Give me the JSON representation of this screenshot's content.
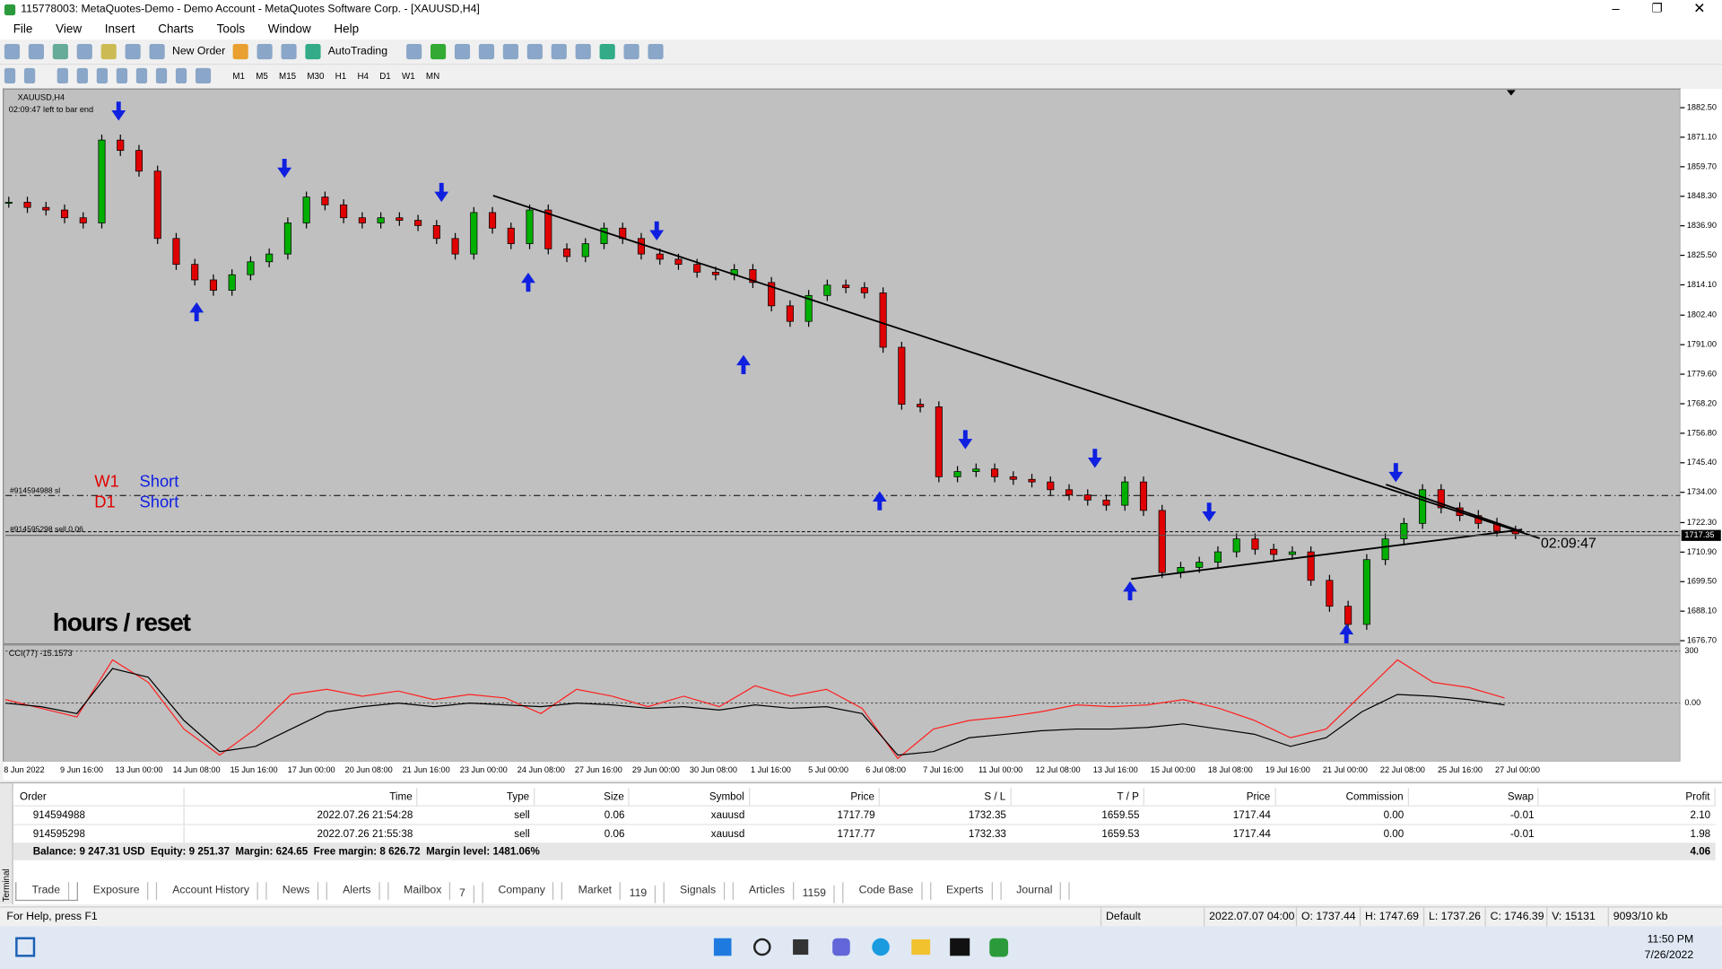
{
  "window": {
    "title": "115778003: MetaQuotes-Demo - Demo Account - MetaQuotes Software Corp. - [XAUUSD,H4]"
  },
  "menu": [
    "File",
    "View",
    "Insert",
    "Charts",
    "Tools",
    "Window",
    "Help"
  ],
  "toolbar": {
    "new_order": "New Order",
    "autotrading": "AutoTrading",
    "timeframes": [
      "M1",
      "M5",
      "M15",
      "M30",
      "H1",
      "H4",
      "D1",
      "W1",
      "MN"
    ]
  },
  "chart_data": [
    {
      "type": "candlestick",
      "symbol_label": "XAUUSD,H4",
      "timer_label": "02:09:47 left to bar end",
      "values": [
        1846,
        1844,
        1843,
        1840,
        1838,
        1870,
        1866,
        1858,
        1832,
        1822,
        1816,
        1812,
        1818,
        1823,
        1826,
        1838,
        1848,
        1845,
        1840,
        1838,
        1840,
        1839,
        1837,
        1832,
        1826,
        1842,
        1836,
        1830,
        1843,
        1828,
        1825,
        1830,
        1836,
        1832,
        1826,
        1824,
        1822,
        1819,
        1818,
        1820,
        1815,
        1806,
        1800,
        1810,
        1814,
        1813,
        1811,
        1790,
        1768,
        1767,
        1740,
        1742,
        1743,
        1740,
        1739,
        1738,
        1735,
        1733,
        1731,
        1729,
        1738,
        1727,
        1703,
        1705,
        1707,
        1711,
        1716,
        1712,
        1710,
        1711,
        1700,
        1690,
        1683,
        1708,
        1716,
        1722,
        1735,
        1728,
        1725,
        1722,
        1719,
        1718
      ],
      "up_color": "#00b000",
      "down_color": "#e00000",
      "ylim": [
        1675.5,
        1889.3
      ],
      "yticks": [
        {
          "value": 1882.5,
          "label": "1882.50"
        },
        {
          "value": 1871.1,
          "label": "1871.10"
        },
        {
          "value": 1859.7,
          "label": "1859.70"
        },
        {
          "value": 1848.3,
          "label": "1848.30"
        },
        {
          "value": 1836.9,
          "label": "1836.90"
        },
        {
          "value": 1825.5,
          "label": "1825.50"
        },
        {
          "value": 1814.1,
          "label": "1814.10"
        },
        {
          "value": 1802.4,
          "label": "1802.40"
        },
        {
          "value": 1791,
          "label": "1791.00"
        },
        {
          "value": 1779.6,
          "label": "1779.60"
        },
        {
          "value": 1768.2,
          "label": "1768.20"
        },
        {
          "value": 1756.8,
          "label": "1756.80"
        },
        {
          "value": 1745.4,
          "label": "1745.40"
        },
        {
          "value": 1734,
          "label": "1734.00"
        },
        {
          "value": 1722.3,
          "label": "1722.30"
        },
        {
          "value": 1710.9,
          "label": "1710.90"
        },
        {
          "value": 1699.5,
          "label": "1699.50"
        },
        {
          "value": 1688.1,
          "label": "1688.10"
        },
        {
          "value": 1676.7,
          "label": "1676.70"
        }
      ],
      "bid": 1717.35,
      "x_axis_labels": [
        "8 Jun 2022",
        "9 Jun 16:00",
        "13 Jun 00:00",
        "14 Jun 08:00",
        "15 Jun 16:00",
        "17 Jun 00:00",
        "20 Jun 08:00",
        "21 Jun 16:00",
        "23 Jun 00:00",
        "24 Jun 08:00",
        "27 Jun 16:00",
        "29 Jun 00:00",
        "30 Jun 08:00",
        "1 Jul 16:00",
        "5 Jul 00:00",
        "6 Jul 08:00",
        "7 Jul 16:00",
        "11 Jul 00:00",
        "12 Jul 08:00",
        "13 Jul 16:00",
        "15 Jul 00:00",
        "18 Jul 08:00",
        "19 Jul 16:00",
        "21 Jul 00:00",
        "22 Jul 08:00",
        "25 Jul 16:00",
        "27 Jul 00:00"
      ],
      "annotations": [
        "W1",
        "Short",
        "D1",
        "Short",
        "hours / reset",
        "02:09:47",
        "#914594988 sl",
        "#914595298 sell 0.06"
      ]
    },
    {
      "type": "line",
      "title": "CCI(77) -15.1573",
      "ylim": [
        -330,
        330
      ],
      "yticks": [
        300,
        {
          "value": 0,
          "label": "0.00"
        }
      ],
      "series": [
        {
          "color": "#ff2020",
          "values": [
            20,
            -30,
            -80,
            250,
            120,
            -150,
            -300,
            -150,
            50,
            80,
            40,
            70,
            20,
            50,
            30,
            -60,
            80,
            40,
            -20,
            40,
            -20,
            100,
            40,
            80,
            -30,
            -320,
            -150,
            -100,
            -80,
            -50,
            -10,
            -20,
            -10,
            20,
            -30,
            -100,
            -200,
            -150,
            50,
            250,
            120,
            90,
            30
          ]
        },
        {
          "color": "#000000",
          "values": [
            0,
            -20,
            -60,
            200,
            150,
            -100,
            -280,
            -250,
            -150,
            -50,
            -20,
            0,
            -20,
            0,
            -10,
            -20,
            0,
            -10,
            -30,
            -20,
            -40,
            -10,
            -30,
            -20,
            -60,
            -300,
            -280,
            -200,
            -180,
            -160,
            -150,
            -150,
            -140,
            -120,
            -150,
            -180,
            -250,
            -200,
            -50,
            50,
            40,
            20,
            -10
          ]
        }
      ]
    }
  ],
  "terminal": {
    "side_label": "Terminal",
    "columns": [
      "Order",
      "Time",
      "Type",
      "Size",
      "Symbol",
      "Price",
      "S / L",
      "T / P",
      "Price",
      "Commission",
      "Swap",
      "Profit"
    ],
    "rows": [
      [
        "914594988",
        "2022.07.26 21:54:28",
        "sell",
        "0.06",
        "xauusd",
        "1717.79",
        "1732.35",
        "1659.55",
        "1717.44",
        "0.00",
        "-0.01",
        "2.10"
      ],
      [
        "914595298",
        "2022.07.26 21:55:38",
        "sell",
        "0.06",
        "xauusd",
        "1717.77",
        "1732.33",
        "1659.53",
        "1717.44",
        "0.00",
        "-0.01",
        "1.98"
      ]
    ],
    "balance": "Balance: 9 247.31 USD  Equity: 9 251.37  Margin: 624.65  Free margin: 8 626.72  Margin level: 1481.06%",
    "total": "4.06",
    "tabs": [
      {
        "label": "Trade"
      },
      {
        "label": "Exposure"
      },
      {
        "label": "Account History"
      },
      {
        "label": "News"
      },
      {
        "label": "Alerts"
      },
      {
        "label": "Mailbox",
        "badge": "7"
      },
      {
        "label": "Company"
      },
      {
        "label": "Market",
        "badge": "119"
      },
      {
        "label": "Signals"
      },
      {
        "label": "Articles",
        "badge": "1159"
      },
      {
        "label": "Code Base"
      },
      {
        "label": "Experts"
      },
      {
        "label": "Journal"
      }
    ]
  },
  "status_bar": [
    "For Help, press F1",
    "Default",
    "2022.07.07 04:00",
    "O: 1737.44",
    "H: 1747.69",
    "L: 1737.26",
    "C: 1746.39",
    "V: 15131",
    "9093/10 kb"
  ],
  "taskbar": {
    "time": "11:50 PM",
    "date": "7/26/2022"
  }
}
